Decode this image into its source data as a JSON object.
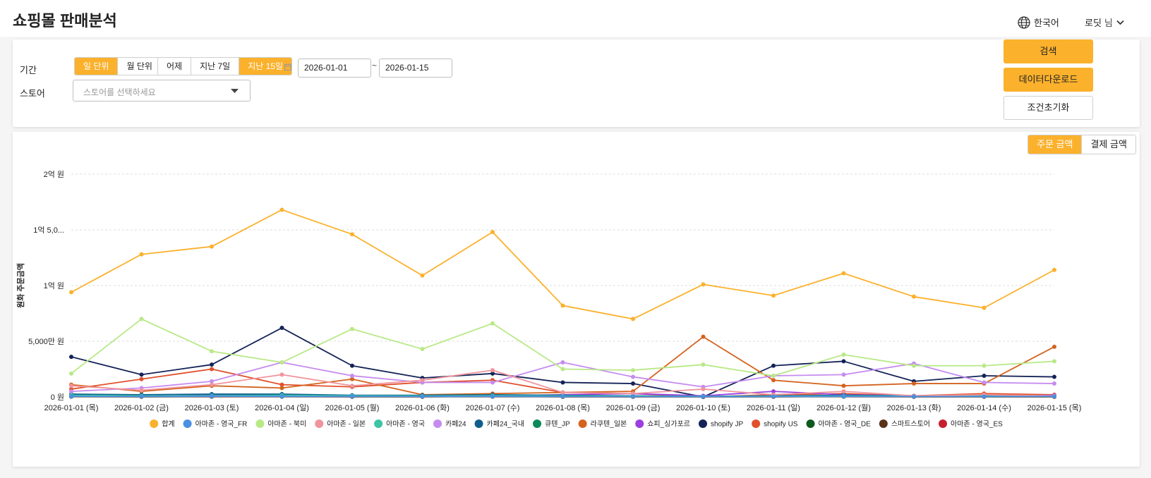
{
  "header": {
    "title": "쇼핑몰 판매분석",
    "language": "한국어",
    "user_name": "로딧",
    "user_suffix": "님"
  },
  "filters": {
    "period_label": "기간",
    "store_label": "스토어",
    "unit_options": [
      "일 단위",
      "월 단위"
    ],
    "unit_selected": "일 단위",
    "range_options": [
      "어제",
      "지난 7일",
      "지난 15일"
    ],
    "range_selected": "지난 15일",
    "start_date": "2026-01-01",
    "end_date": "2026-01-15",
    "date_separator": "~",
    "store_placeholder": "스토어를 선택하세요"
  },
  "actions": {
    "search": "검색",
    "download": "데이터다운로드",
    "reset": "조건초기화"
  },
  "metric_toggle": {
    "options": [
      "주문 금액",
      "결제 금액"
    ],
    "selected": "주문 금액"
  },
  "colors": {
    "accent": "#fbb12c"
  },
  "chart_data": {
    "type": "line",
    "ylabel": "원화 주문금액",
    "xlabel": "",
    "ylim": [
      0,
      200000000
    ],
    "yticks": [
      0,
      50000000,
      100000000,
      150000000,
      200000000
    ],
    "ytick_labels": [
      "0 원",
      "5,000만 원",
      "1억 원",
      "1억 5,0...",
      "2억 원"
    ],
    "grid": true,
    "legend_position": "bottom",
    "categories": [
      "2026-01-01 (목)",
      "2026-01-02 (금)",
      "2026-01-03 (토)",
      "2026-01-04 (일)",
      "2026-01-05 (월)",
      "2026-01-06 (화)",
      "2026-01-07 (수)",
      "2026-01-08 (목)",
      "2026-01-09 (금)",
      "2026-01-10 (토)",
      "2026-01-11 (일)",
      "2026-01-12 (월)",
      "2026-01-13 (화)",
      "2026-01-14 (수)",
      "2026-01-15 (목)"
    ],
    "series": [
      {
        "name": "합계",
        "color": "#fbb12c",
        "values": [
          94000000,
          128000000,
          135000000,
          168000000,
          146000000,
          109000000,
          148000000,
          82000000,
          70000000,
          101000000,
          91000000,
          111000000,
          90000000,
          80000000,
          114000000
        ]
      },
      {
        "name": "아마존 - 영국_FR",
        "color": "#4a90e2",
        "values": [
          500000,
          400000,
          600000,
          500000,
          400000,
          400000,
          500000,
          400000,
          400000,
          300000,
          400000,
          500000,
          400000,
          400000,
          500000
        ]
      },
      {
        "name": "아마존 - 북미",
        "color": "#b8e986",
        "values": [
          21000000,
          70000000,
          41000000,
          31000000,
          61000000,
          43000000,
          66000000,
          25000000,
          24000000,
          29000000,
          19000000,
          38000000,
          28000000,
          28000000,
          32000000
        ]
      },
      {
        "name": "아마존 - 일본",
        "color": "#f0959d",
        "values": [
          10000000,
          6000000,
          11000000,
          20000000,
          10000000,
          15000000,
          24000000,
          4000000,
          3000000,
          7000000,
          2000000,
          5000000,
          1000000,
          2000000,
          1000000
        ]
      },
      {
        "name": "아마존 - 영국",
        "color": "#3cc4a6",
        "values": [
          1500000,
          1000000,
          1200000,
          1500000,
          1000000,
          900000,
          1200000,
          900000,
          800000,
          500000,
          700000,
          900000,
          800000,
          700000,
          600000
        ]
      },
      {
        "name": "카페24",
        "color": "#c58cf0",
        "values": [
          5000000,
          8000000,
          14000000,
          31000000,
          19000000,
          13000000,
          13000000,
          31000000,
          18000000,
          9000000,
          19000000,
          20000000,
          30000000,
          13000000,
          12000000
        ]
      },
      {
        "name": "카페24_국내",
        "color": "#0f5e8c",
        "values": [
          2500000,
          2000000,
          2500000,
          2500000,
          1500000,
          1500000,
          2000000,
          1500000,
          1000000,
          500000,
          1000000,
          1500000,
          1000000,
          1000000,
          1000000
        ]
      },
      {
        "name": "큐텐_JP",
        "color": "#0a8a5a",
        "values": [
          800000,
          600000,
          900000,
          700000,
          600000,
          500000,
          700000,
          500000,
          400000,
          300000,
          400000,
          500000,
          400000,
          400000,
          500000
        ]
      },
      {
        "name": "라쿠텐_일본",
        "color": "#d4631e",
        "values": [
          11000000,
          5000000,
          10000000,
          8000000,
          16000000,
          2000000,
          3000000,
          4000000,
          5000000,
          54000000,
          15000000,
          10000000,
          12000000,
          12000000,
          45000000
        ]
      },
      {
        "name": "쇼피_싱가포르",
        "color": "#9b3fe0",
        "values": [
          1000000,
          800000,
          1500000,
          1000000,
          800000,
          700000,
          1000000,
          2000000,
          3000000,
          1000000,
          5000000,
          2000000,
          1000000,
          1000000,
          1500000
        ]
      },
      {
        "name": "shopify JP",
        "color": "#142357",
        "values": [
          36000000,
          20000000,
          29000000,
          62000000,
          28000000,
          17000000,
          21000000,
          13000000,
          12000000,
          0,
          28000000,
          32000000,
          14000000,
          19000000,
          18000000
        ]
      },
      {
        "name": "shopify US",
        "color": "#e0502b",
        "values": [
          7000000,
          16000000,
          25000000,
          11000000,
          9000000,
          13000000,
          15000000,
          4000000,
          3000000,
          0,
          2000000,
          3000000,
          1000000,
          3000000,
          2000000
        ]
      },
      {
        "name": "아마존 - 영국_DE",
        "color": "#0e5a1e",
        "values": [
          400000,
          300000,
          500000,
          400000,
          300000,
          300000,
          400000,
          300000,
          300000,
          200000,
          300000,
          400000,
          300000,
          300000,
          300000
        ]
      },
      {
        "name": "스마트스토어",
        "color": "#5a3217",
        "values": [
          300000,
          200000,
          300000,
          300000,
          200000,
          200000,
          300000,
          200000,
          200000,
          200000,
          200000,
          300000,
          200000,
          200000,
          200000
        ]
      },
      {
        "name": "아마존 - 영국_ES",
        "color": "#c6202f",
        "values": [
          200000,
          100000,
          200000,
          200000,
          100000,
          100000,
          200000,
          100000,
          100000,
          100000,
          100000,
          200000,
          100000,
          100000,
          100000
        ]
      }
    ]
  }
}
